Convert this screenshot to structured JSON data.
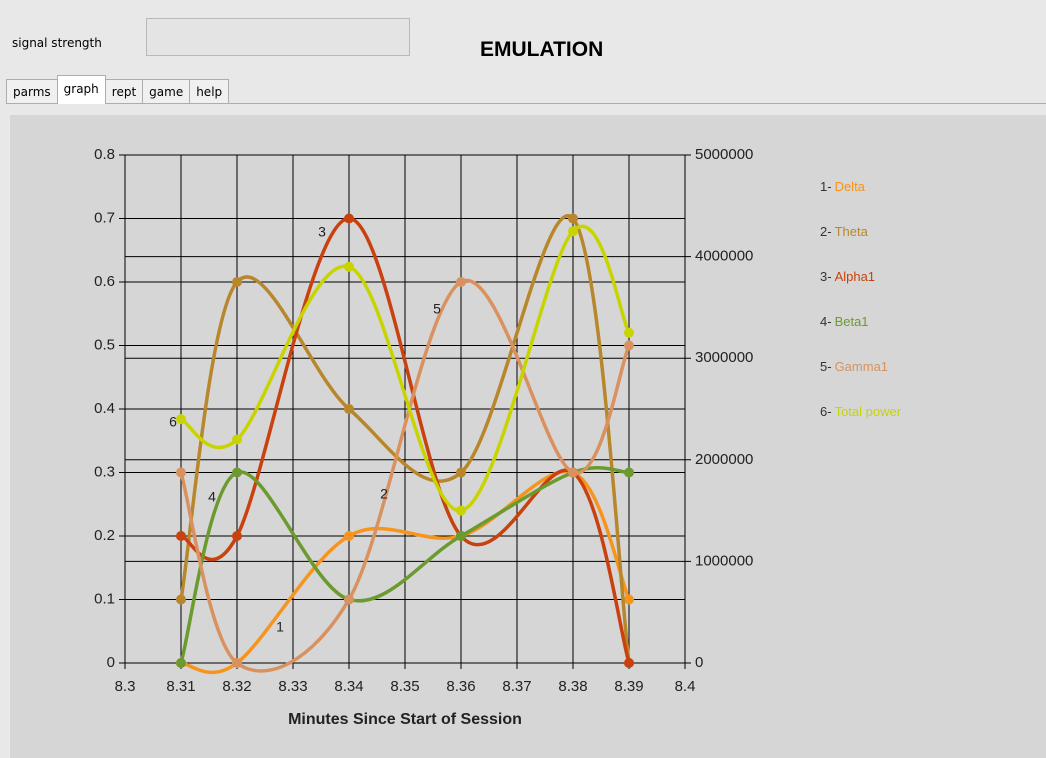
{
  "header": {
    "signal_label": "signal strength",
    "title": "EMULATION"
  },
  "tabs": {
    "items": [
      "parms",
      "graph",
      "rept",
      "game",
      "help"
    ],
    "selected": "graph"
  },
  "chart_data": {
    "type": "line",
    "smooth": true,
    "grid": true,
    "legend": "right",
    "xlabel": "Minutes Since Start of Session",
    "x": [
      8.31,
      8.32,
      8.34,
      8.36,
      8.38,
      8.39
    ],
    "xlim": [
      8.3,
      8.4
    ],
    "xticks": [
      8.3,
      8.31,
      8.32,
      8.33,
      8.34,
      8.35,
      8.36,
      8.37,
      8.38,
      8.39,
      8.4
    ],
    "ylim": [
      0,
      0.8
    ],
    "yticks": [
      0,
      0.1,
      0.2,
      0.3,
      0.4,
      0.5,
      0.6,
      0.7,
      0.8
    ],
    "y2lim": [
      0,
      5000000
    ],
    "y2ticks": [
      0,
      1000000,
      2000000,
      3000000,
      4000000,
      5000000
    ],
    "series": [
      {
        "key": "1-",
        "name": "Delta",
        "color": "#f7941d",
        "values": [
          0,
          0,
          0.2,
          0.2,
          0.3,
          0.1
        ]
      },
      {
        "key": "2-",
        "name": "Theta",
        "color": "#b8862b",
        "values": [
          0.1,
          0.6,
          0.4,
          0.3,
          0.7,
          0
        ]
      },
      {
        "key": "3-",
        "name": "Alpha1",
        "color": "#c8410e",
        "values": [
          0.2,
          0.2,
          0.7,
          0.2,
          0.3,
          0
        ]
      },
      {
        "key": "4-",
        "name": "Beta1",
        "color": "#6b9a2e",
        "values": [
          0,
          0.3,
          0.1,
          0.2,
          0.3,
          0.3
        ]
      },
      {
        "key": "5-",
        "name": "Gamma1",
        "color": "#d9925f",
        "values": [
          0.3,
          0,
          0.1,
          0.6,
          0.3,
          0.5
        ]
      },
      {
        "key": "6-",
        "name": "Total power",
        "color": "#c8d400",
        "axis": "y2",
        "values": [
          2400000,
          2200000,
          3900000,
          1500000,
          4250000,
          3250000
        ]
      }
    ],
    "annotations": [
      "1",
      "2",
      "3",
      "4",
      "5",
      "6"
    ]
  }
}
